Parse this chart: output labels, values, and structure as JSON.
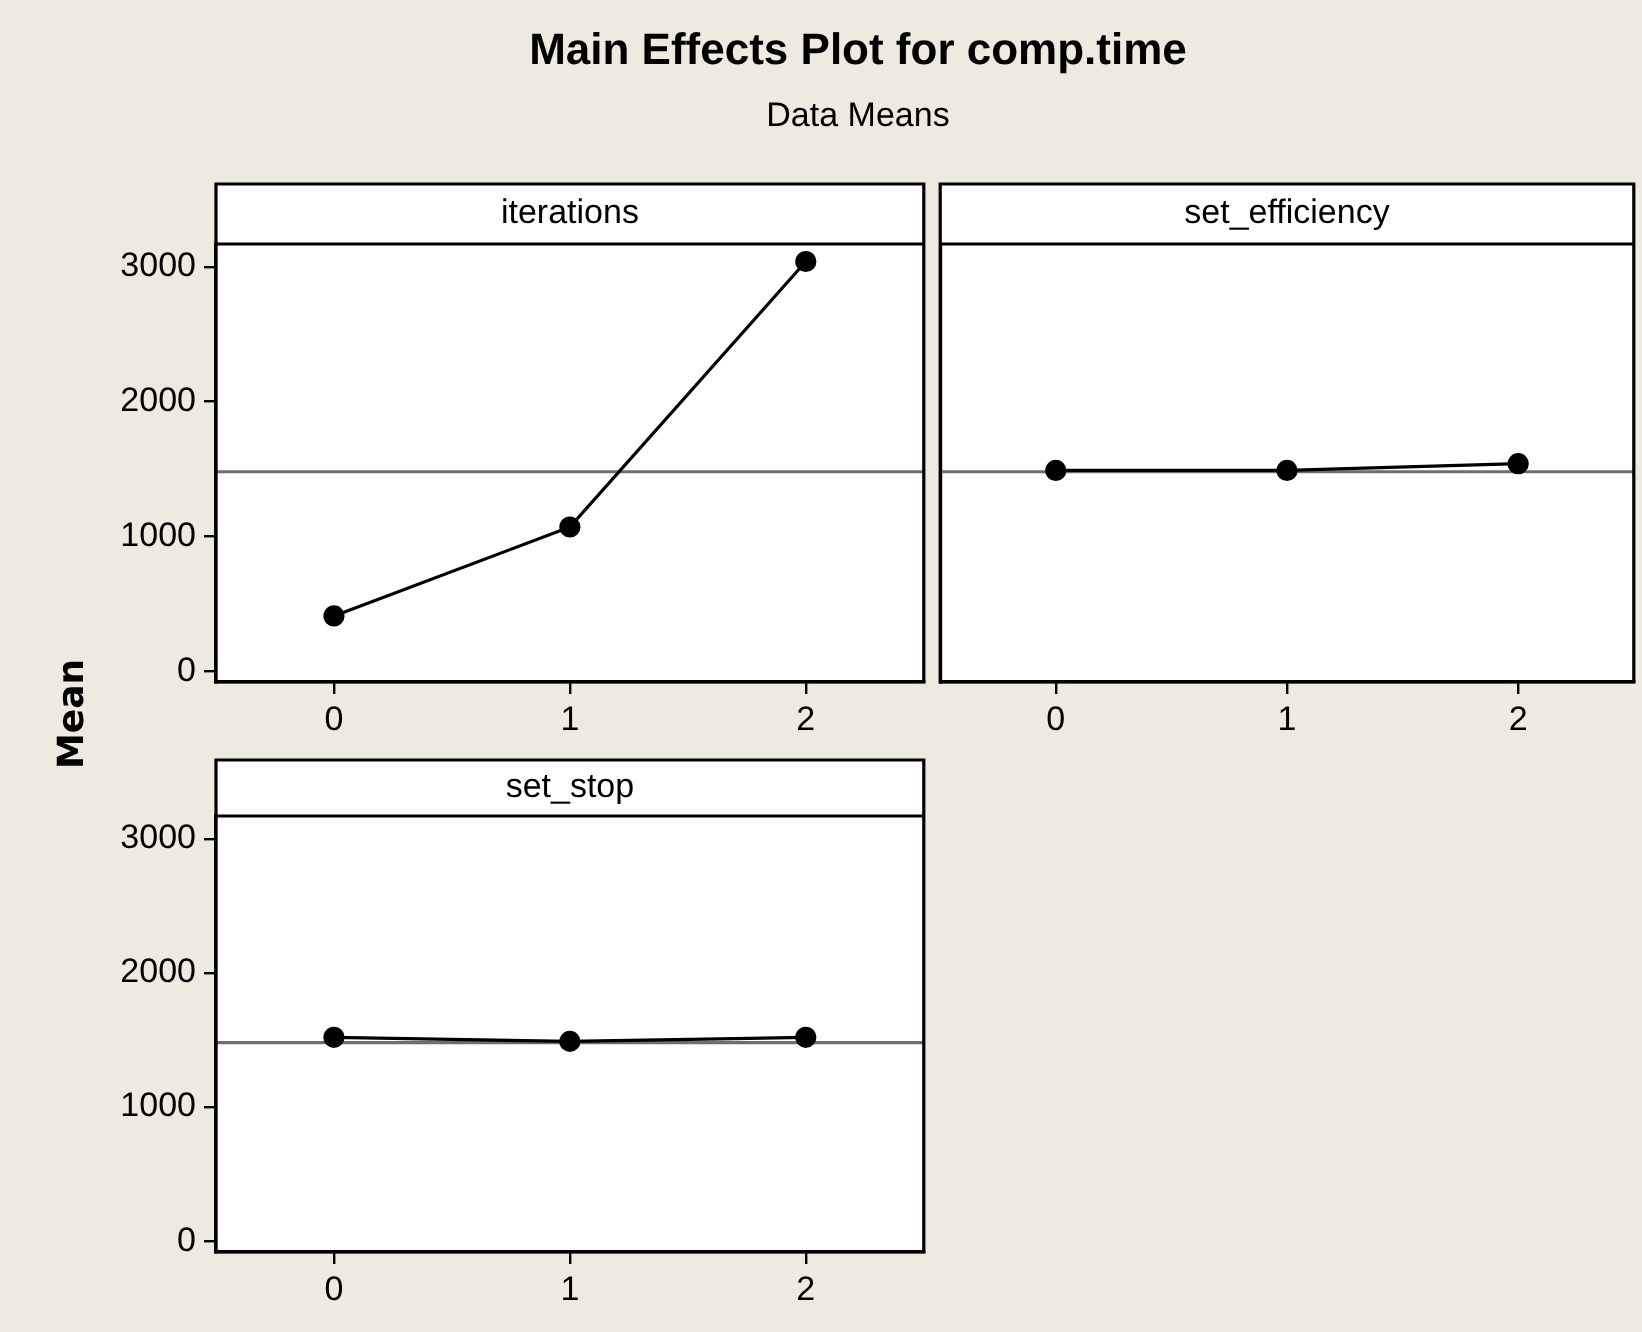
{
  "chart_data": [
    {
      "type": "line",
      "title": "Main Effects Plot for comp.time",
      "subtitle": "Data Means",
      "ylabel": "Mean",
      "xlabel": "iterations",
      "x": [
        0,
        1,
        2
      ],
      "values": [
        410,
        1070,
        3040
      ],
      "color": "#000000",
      "marker": "circle",
      "line_style": "solid",
      "xlim": [
        -0.5,
        2.5
      ],
      "xticks": [
        0,
        1,
        2
      ],
      "ylim": [
        -80,
        3170
      ],
      "yticks": [
        0,
        1000,
        2000,
        3000
      ],
      "ref_lines": [
        {
          "axis": "y",
          "value": 1480,
          "color": "#6e6e6e"
        }
      ]
    },
    {
      "type": "line",
      "xlabel": "set_efficiency",
      "x": [
        0,
        1,
        2
      ],
      "values": [
        1490,
        1490,
        1540
      ],
      "color": "#000000",
      "marker": "circle",
      "line_style": "solid",
      "xlim": [
        -0.5,
        2.5
      ],
      "xticks": [
        0,
        1,
        2
      ],
      "ylim": [
        -80,
        3170
      ],
      "yticks": [
        0,
        1000,
        2000,
        3000
      ],
      "tick_labels": "x",
      "ref_lines": [
        {
          "axis": "y",
          "value": 1480,
          "color": "#6e6e6e"
        }
      ]
    },
    {
      "type": "line",
      "xlabel": "set_stop",
      "x": [
        0,
        1,
        2
      ],
      "values": [
        1520,
        1490,
        1520
      ],
      "color": "#000000",
      "marker": "circle",
      "line_style": "solid",
      "xlim": [
        -0.5,
        2.5
      ],
      "xticks": [
        0,
        1,
        2
      ],
      "ylim": [
        -80,
        3170
      ],
      "yticks": [
        0,
        1000,
        2000,
        3000
      ],
      "ref_lines": [
        {
          "axis": "y",
          "value": 1480,
          "color": "#6e6e6e"
        }
      ]
    }
  ]
}
